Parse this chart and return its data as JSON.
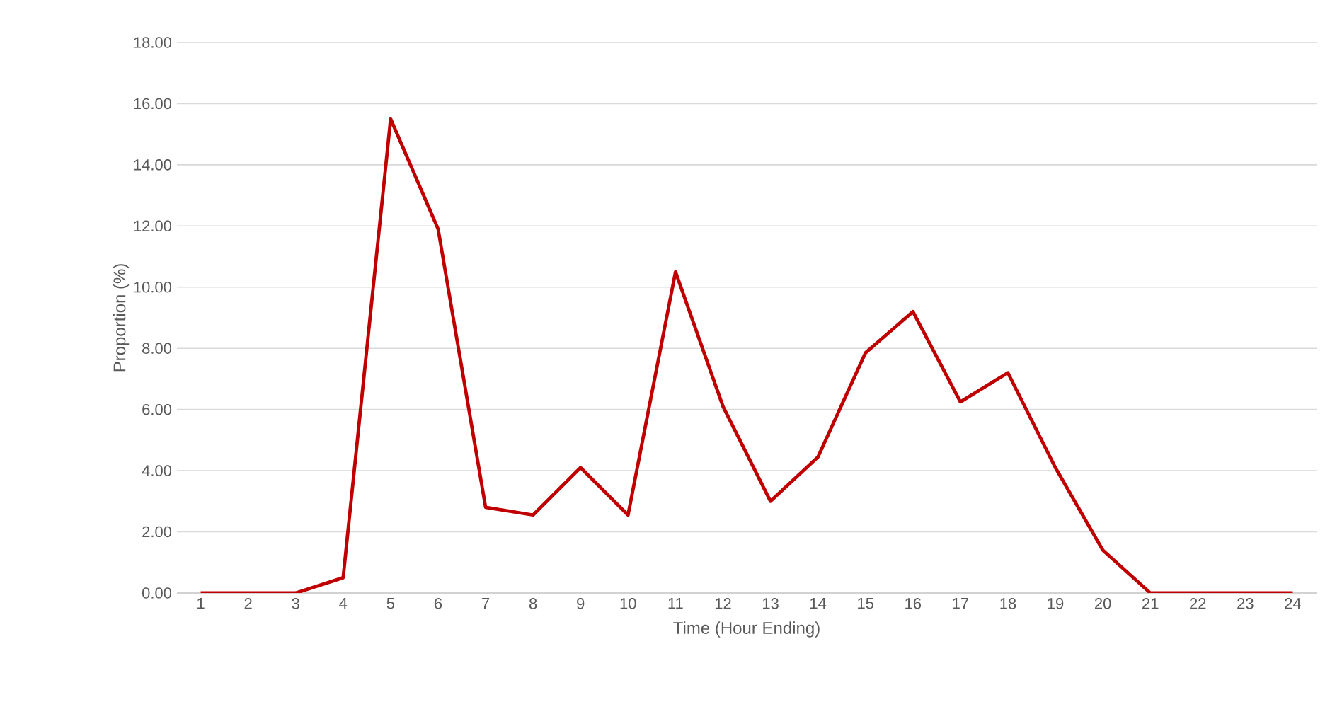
{
  "chart_data": {
    "type": "line",
    "xlabel": "Time (Hour Ending)",
    "ylabel": "Proportion (%)",
    "categories": [
      "1",
      "2",
      "3",
      "4",
      "5",
      "6",
      "7",
      "8",
      "9",
      "10",
      "11",
      "12",
      "13",
      "14",
      "15",
      "16",
      "17",
      "18",
      "19",
      "20",
      "21",
      "22",
      "23",
      "24"
    ],
    "series": [
      {
        "color": "#c00000",
        "values": [
          0,
          0,
          0,
          0.5,
          15.5,
          11.9,
          2.8,
          2.55,
          4.1,
          2.55,
          10.5,
          6.1,
          3.0,
          4.45,
          7.85,
          9.2,
          6.25,
          7.2,
          4.1,
          1.4,
          0,
          0,
          0,
          0
        ]
      }
    ],
    "ylim": [
      0,
      18
    ],
    "yticks": [
      {
        "value": 0,
        "label": "0.00"
      },
      {
        "value": 2,
        "label": "2.00"
      },
      {
        "value": 4,
        "label": "4.00"
      },
      {
        "value": 6,
        "label": "6.00"
      },
      {
        "value": 8,
        "label": "8.00"
      },
      {
        "value": 10,
        "label": "10.00"
      },
      {
        "value": 12,
        "label": "12.00"
      },
      {
        "value": 14,
        "label": "14.00"
      },
      {
        "value": 16,
        "label": "16.00"
      },
      {
        "value": 18,
        "label": "18.00"
      }
    ],
    "grid": "y",
    "marker": "none",
    "line_style": "solid"
  }
}
